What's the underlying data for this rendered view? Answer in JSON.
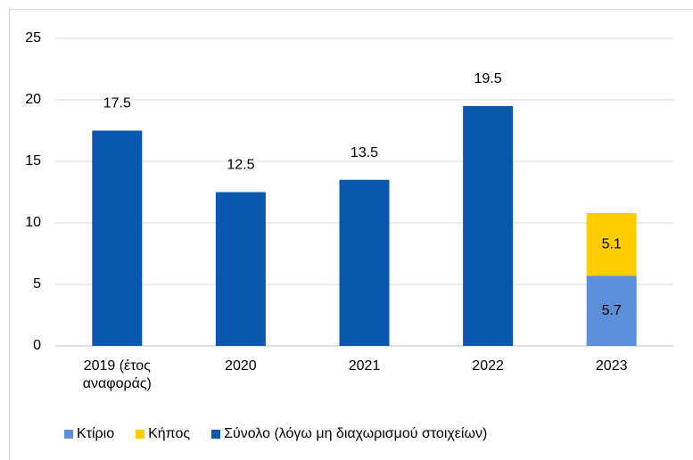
{
  "chart_data": {
    "type": "stacked_bar",
    "categories": [
      "2019 (έτος αναφοράς)",
      "2020",
      "2021",
      "2022",
      "2023"
    ],
    "series": [
      {
        "name": "Κτίριο",
        "color": "#5b8fd9",
        "values": [
          null,
          null,
          null,
          null,
          5.7
        ]
      },
      {
        "name": "Κήπος",
        "color": "#ffcc00",
        "values": [
          null,
          null,
          null,
          null,
          5.1
        ]
      },
      {
        "name": "Σύνολο (λόγω μη διαχωρισμού στοιχείων)",
        "color": "#0a57b0",
        "values": [
          17.5,
          12.5,
          13.5,
          19.5,
          null
        ]
      }
    ],
    "ylim": [
      0,
      25
    ],
    "yticks": [
      0,
      5,
      10,
      15,
      20,
      25
    ],
    "grid": true,
    "legend": "bottom"
  }
}
